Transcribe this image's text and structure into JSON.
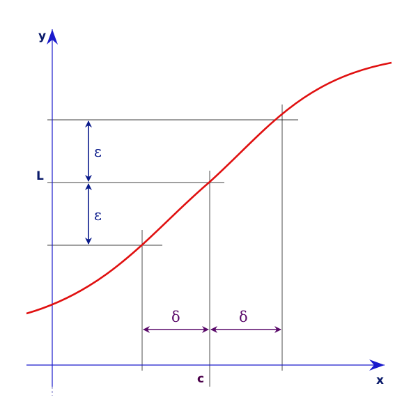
{
  "labels": {
    "y_axis": "y",
    "x_axis": "x",
    "L": "L",
    "c": "c",
    "epsilon_upper": "ε",
    "epsilon_lower": "ε",
    "delta_left": "δ",
    "delta_right": "δ"
  },
  "colors": {
    "axes": "#1a1acc",
    "curve": "#e01010",
    "guide_lines": "#000000",
    "epsilon_arrows": "#0a1a8a",
    "delta_arrows": "#5a0a6a",
    "axis_labels": "#0a1a6a",
    "c_label": "#4a004a"
  }
}
